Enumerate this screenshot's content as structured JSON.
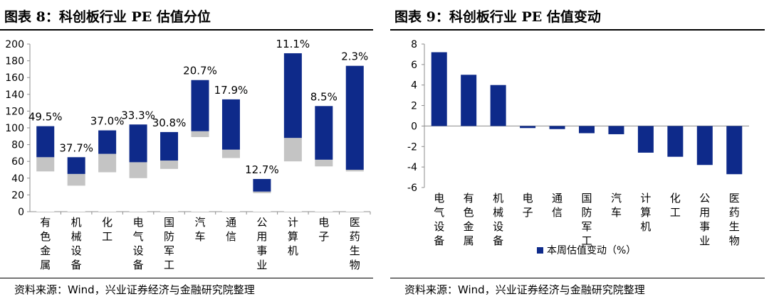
{
  "figures": [
    {
      "title": "图表 8：科创板行业 PE 估值分位",
      "source": "资料来源：Wind，兴业证券经济与金融研究院整理"
    },
    {
      "title": "图表 9：科创板行业 PE 估值变动",
      "source": "资料来源：Wind，兴业证券经济与金融研究院整理"
    }
  ],
  "colors": {
    "navy": "#0e2a8a",
    "gray": "#c4c4c4",
    "white": "#ffffff",
    "axis": "#8c8c8c"
  },
  "chart_data": [
    {
      "type": "bar",
      "stacked": true,
      "title": "图表 8：科创板行业 PE 估值分位",
      "categories": [
        "有色金属",
        "机械设备",
        "化工",
        "电气设备",
        "国防军工",
        "汽车",
        "通信",
        "公用事业",
        "计算机",
        "电子",
        "医药生物"
      ],
      "series": [
        {
          "name": "segment-bottom",
          "color": "white",
          "values": [
            48,
            31,
            47,
            40,
            51,
            89,
            64,
            22,
            60,
            54,
            48
          ]
        },
        {
          "name": "segment-middle",
          "color": "gray",
          "values": [
            17,
            14,
            22,
            19,
            10,
            7,
            10,
            2,
            28,
            8,
            2
          ]
        },
        {
          "name": "segment-top",
          "color": "navy",
          "values": [
            37,
            20,
            28,
            45,
            34,
            61,
            60,
            15,
            101,
            64,
            124
          ]
        }
      ],
      "labels": [
        "49.5%",
        "37.7%",
        "37.0%",
        "33.3%",
        "30.8%",
        "20.7%",
        "17.9%",
        "12.7%",
        "11.1%",
        "8.5%",
        "2.3%"
      ],
      "ylim": [
        0,
        200
      ],
      "yticks": [
        "0",
        "20",
        "40",
        "60",
        "80",
        "100",
        "120",
        "140",
        "160",
        "180",
        "200"
      ],
      "xlabel": "",
      "ylabel": ""
    },
    {
      "type": "bar",
      "title": "图表 9：科创板行业 PE 估值变动",
      "categories": [
        "电气设备",
        "有色金属",
        "机械设备",
        "电子",
        "通信",
        "国防军工",
        "汽车",
        "计算机",
        "化工",
        "公用事业",
        "医药生物"
      ],
      "series": [
        {
          "name": "本周估值变动（%）",
          "values": [
            7.2,
            5.0,
            4.0,
            -0.2,
            -0.3,
            -0.7,
            -0.8,
            -2.6,
            -3.0,
            -3.8,
            -4.7
          ]
        }
      ],
      "ylim": [
        -6,
        8
      ],
      "yticks": [
        "-6",
        "-4",
        "-2",
        "0",
        "2",
        "4",
        "6",
        "8"
      ],
      "legend": "本周估值变动（%）",
      "legend_position": "bottom",
      "xlabel": "",
      "ylabel": ""
    }
  ]
}
